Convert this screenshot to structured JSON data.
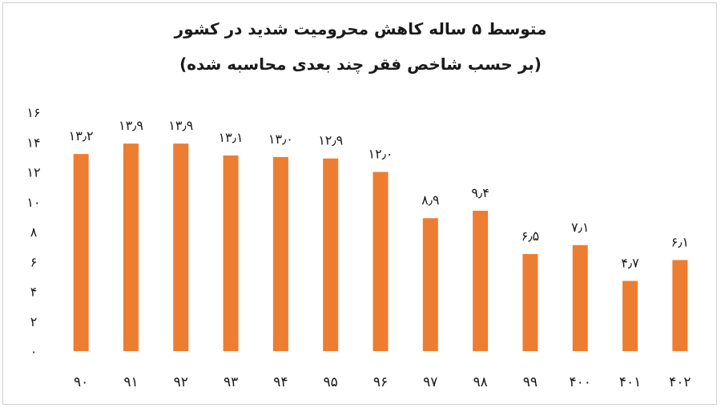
{
  "chart_data": {
    "type": "bar",
    "title": "متوسط ۵ ساله کاهش محرومیت شدید در کشور",
    "subtitle": "(بر حسب شاخص فقر چند بعدی محاسبه شده)",
    "categories": [
      "۹۰",
      "۹۱",
      "۹۲",
      "۹۳",
      "۹۴",
      "۹۵",
      "۹۶",
      "۹۷",
      "۹۸",
      "۹۹",
      "۴۰۰",
      "۴۰۱",
      "۴۰۲"
    ],
    "values": [
      13.2,
      13.9,
      13.9,
      13.1,
      13.0,
      12.9,
      12.0,
      8.9,
      9.4,
      6.5,
      7.1,
      4.7,
      6.1
    ],
    "data_labels": [
      "۱۳٫۲",
      "۱۳٫۹",
      "۱۳٫۹",
      "۱۳٫۱",
      "۱۳٫۰",
      "۱۲٫۹",
      "۱۲٫۰",
      "۸٫۹",
      "۹٫۴",
      "۶٫۵",
      "۷٫۱",
      "۴٫۷",
      "۶٫۱"
    ],
    "yticks": [
      0,
      2,
      4,
      6,
      8,
      10,
      12,
      14,
      16
    ],
    "ytick_labels": [
      "۰",
      "۲",
      "۴",
      "۶",
      "۸",
      "۱۰",
      "۱۲",
      "۱۴",
      "۱۶"
    ],
    "ylim": [
      0,
      16
    ],
    "xlabel": "",
    "ylabel": "",
    "grid": false,
    "legend": "none",
    "bar_color": "#ED7D31"
  }
}
